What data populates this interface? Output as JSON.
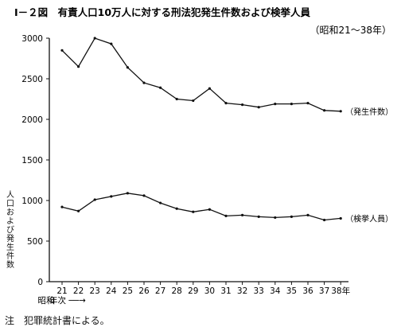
{
  "chart_data": {
    "type": "line",
    "title": "Ⅰ－２図　有責人口10万人に対する刑法犯発生件数および検挙人員",
    "subtitle": "（昭和21～38年）",
    "ylabel": "人口および発生件数",
    "xlabel": "年次 ──→",
    "x_prefix": "昭和",
    "categories": [
      "21",
      "22",
      "23",
      "24",
      "25",
      "26",
      "27",
      "28",
      "29",
      "30",
      "31",
      "32",
      "33",
      "34",
      "35",
      "36",
      "37",
      "38年"
    ],
    "yticks": [
      "0",
      "500",
      "1000",
      "1500",
      "2000",
      "2500",
      "3000"
    ],
    "ylim": [
      0,
      3000
    ],
    "grid": false,
    "series": [
      {
        "name": "発生件数",
        "label": "（発生件数）",
        "values": [
          2850,
          2650,
          3000,
          2930,
          2640,
          2450,
          2390,
          2250,
          2230,
          2380,
          2200,
          2180,
          2150,
          2190,
          2190,
          2200,
          2110,
          2100
        ]
      },
      {
        "name": "検挙人員",
        "label": "（検挙人員）",
        "values": [
          920,
          870,
          1010,
          1050,
          1090,
          1060,
          970,
          900,
          860,
          890,
          810,
          820,
          800,
          790,
          800,
          820,
          760,
          780
        ]
      }
    ],
    "note": "注　犯罪統計書による。"
  }
}
